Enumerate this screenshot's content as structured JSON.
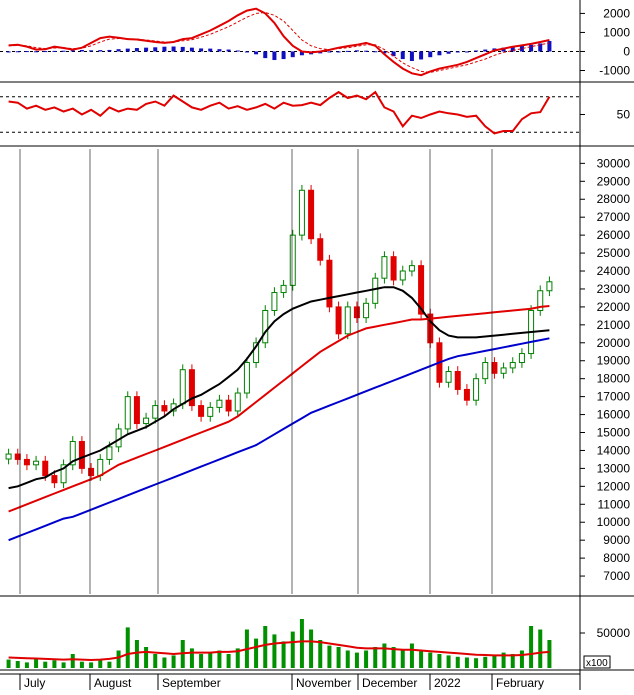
{
  "chart_data": [
    {
      "type": "line",
      "panel": "macd",
      "ylim": [
        -1500,
        2600
      ],
      "y_ticks": [
        "2000",
        "1000",
        "0",
        "-1000"
      ],
      "y_tick_values": [
        2000,
        1000,
        0,
        -1000
      ],
      "reference_lines": [
        0
      ],
      "histogram": [
        0,
        10,
        20,
        10,
        20,
        30,
        40,
        60,
        80,
        60,
        70,
        80,
        120,
        150,
        180,
        200,
        220,
        250,
        260,
        240,
        200,
        160,
        150,
        120,
        100,
        50,
        -20,
        -150,
        -350,
        -450,
        -400,
        -300,
        -200,
        -150,
        -100,
        -50,
        0,
        30,
        60,
        40,
        10,
        -100,
        -250,
        -400,
        -500,
        -420,
        -300,
        -200,
        -120,
        -50,
        0,
        50,
        100,
        160,
        200,
        250,
        300,
        350,
        420,
        550
      ],
      "series": [
        {
          "values": [
            320,
            350,
            250,
            100,
            120,
            250,
            180,
            100,
            200,
            450,
            700,
            780,
            720,
            650,
            630,
            560,
            500,
            450,
            500,
            650,
            700,
            900,
            1100,
            1350,
            1600,
            1900,
            2150,
            2250,
            2000,
            1500,
            800,
            300,
            0,
            -50,
            0,
            80,
            200,
            280,
            350,
            450,
            300,
            -150,
            -550,
            -900,
            -1150,
            -1250,
            -1050,
            -900,
            -800,
            -700,
            -550,
            -350,
            -150,
            50,
            150,
            250,
            320,
            400,
            500,
            600
          ],
          "color": "#e00000"
        },
        {
          "values": [
            300,
            320,
            300,
            200,
            150,
            180,
            190,
            150,
            170,
            300,
            500,
            650,
            680,
            670,
            650,
            600,
            550,
            500,
            500,
            560,
            620,
            750,
            900,
            1100,
            1300,
            1550,
            1800,
            2000,
            2050,
            1900,
            1600,
            1100,
            600,
            300,
            150,
            100,
            150,
            200,
            270,
            350,
            350,
            100,
            -250,
            -600,
            -850,
            -1050,
            -1100,
            -1000,
            -900,
            -800,
            -700,
            -550,
            -400,
            -200,
            -50,
            50,
            150,
            250,
            350,
            450
          ],
          "color": "#e00000",
          "dashed": true
        }
      ]
    },
    {
      "type": "line",
      "panel": "rsi",
      "ylim": [
        0,
        100
      ],
      "y_ticks": [
        "50"
      ],
      "y_tick_values": [
        50
      ],
      "reference_lines": [
        20,
        80
      ],
      "series": [
        {
          "values": [
            72,
            70,
            60,
            65,
            58,
            62,
            55,
            60,
            50,
            58,
            48,
            62,
            55,
            60,
            58,
            68,
            72,
            65,
            82,
            72,
            62,
            58,
            65,
            70,
            60,
            64,
            58,
            62,
            68,
            60,
            70,
            65,
            66,
            70,
            66,
            78,
            88,
            78,
            82,
            76,
            88,
            62,
            55,
            30,
            48,
            44,
            50,
            55,
            52,
            50,
            46,
            48,
            30,
            18,
            22,
            22,
            42,
            52,
            54,
            80
          ],
          "color": "#e00000"
        }
      ]
    },
    {
      "type": "candlestick",
      "panel": "price",
      "ylim": [
        6000,
        30800
      ],
      "y_ticks": [
        "30000",
        "29000",
        "28000",
        "27000",
        "26000",
        "25000",
        "24000",
        "23000",
        "22000",
        "21000",
        "20000",
        "19000",
        "18000",
        "17000",
        "16000",
        "15000",
        "14000",
        "13000",
        "12000",
        "11000",
        "10000",
        "9000",
        "8000",
        "7000"
      ],
      "y_tick_values": [
        30000,
        29000,
        28000,
        27000,
        26000,
        25000,
        24000,
        23000,
        22000,
        21000,
        20000,
        19000,
        18000,
        17000,
        16000,
        15000,
        14000,
        13000,
        12000,
        11000,
        10000,
        9000,
        8000,
        7000
      ],
      "x_ticks": [
        "July",
        "August",
        "September",
        "November",
        "December",
        "2022",
        "February"
      ],
      "close": [
        13800,
        13500,
        13200,
        13400,
        12600,
        12200,
        13200,
        14500,
        13000,
        12600,
        13500,
        14200,
        15200,
        17000,
        15500,
        15800,
        16500,
        16200,
        16600,
        18500,
        16500,
        15900,
        16400,
        16800,
        16200,
        17200,
        18900,
        20000,
        21800,
        22800,
        23200,
        26000,
        28500,
        25800,
        24600,
        22000,
        20500,
        22000,
        21400,
        22200,
        23600,
        24800,
        23500,
        24000,
        24300,
        21600,
        20000,
        17800,
        18400,
        17400,
        16800,
        18000,
        18900,
        18300,
        18600,
        18900,
        19400,
        21800,
        22900,
        23400
      ],
      "series": [
        {
          "name": "",
          "values": [
            11900,
            12000,
            12200,
            12400,
            12500,
            12800,
            13000,
            13400,
            13600,
            13800,
            14000,
            14300,
            14600,
            14900,
            15100,
            15300,
            15600,
            15900,
            16300,
            16600,
            16900,
            17100,
            17400,
            17700,
            18100,
            18500,
            19100,
            19800,
            20600,
            21200,
            21600,
            21900,
            22100,
            22300,
            22400,
            22500,
            22600,
            22700,
            22800,
            22900,
            23000,
            23100,
            23100,
            22900,
            22500,
            21900,
            21200,
            20700,
            20400,
            20300,
            20300,
            20300,
            20350,
            20400,
            20450,
            20500,
            20550,
            20600,
            20650,
            20700
          ],
          "color": "#000000"
        },
        {
          "name": "",
          "values": [
            10600,
            10800,
            11000,
            11200,
            11400,
            11600,
            11800,
            12000,
            12200,
            12400,
            12600,
            12900,
            13200,
            13400,
            13600,
            13800,
            14000,
            14200,
            14400,
            14600,
            14800,
            15000,
            15200,
            15400,
            15600,
            15900,
            16300,
            16700,
            17100,
            17500,
            17900,
            18300,
            18700,
            19100,
            19500,
            19800,
            20100,
            20400,
            20600,
            20800,
            20900,
            21000,
            21100,
            21200,
            21300,
            21300,
            21350,
            21400,
            21450,
            21500,
            21550,
            21600,
            21650,
            21700,
            21750,
            21800,
            21850,
            21900,
            22000,
            22050
          ],
          "color": "#e00000"
        },
        {
          "name": "",
          "values": [
            9000,
            9200,
            9400,
            9600,
            9800,
            10000,
            10200,
            10300,
            10500,
            10700,
            10900,
            11100,
            11300,
            11500,
            11700,
            11900,
            12100,
            12300,
            12500,
            12700,
            12900,
            13100,
            13300,
            13500,
            13700,
            13900,
            14100,
            14300,
            14600,
            14900,
            15200,
            15500,
            15800,
            16100,
            16300,
            16500,
            16700,
            16900,
            17100,
            17300,
            17500,
            17700,
            17900,
            18100,
            18300,
            18500,
            18700,
            18900,
            19100,
            19250,
            19350,
            19450,
            19550,
            19650,
            19750,
            19850,
            19950,
            20050,
            20150,
            20250
          ],
          "color": "#0000cc"
        }
      ]
    },
    {
      "type": "bar",
      "panel": "volume",
      "ylim": [
        0,
        100000
      ],
      "y_ticks": [
        "50000"
      ],
      "y_tick_values": [
        50000
      ],
      "unit_label": "x100",
      "values": [
        12000,
        10000,
        8000,
        14000,
        9000,
        11000,
        8000,
        20000,
        9000,
        8000,
        12000,
        9000,
        25000,
        58000,
        40000,
        30000,
        20000,
        15000,
        18000,
        40000,
        28000,
        20000,
        22000,
        25000,
        20000,
        28000,
        55000,
        42000,
        60000,
        48000,
        38000,
        52000,
        70000,
        55000,
        40000,
        32000,
        30000,
        25000,
        22000,
        25000,
        30000,
        35000,
        30000,
        26000,
        35000,
        25000,
        22000,
        20000,
        18000,
        16000,
        15000,
        14000,
        16000,
        18000,
        22000,
        20000,
        25000,
        60000,
        55000,
        40000
      ],
      "series": [
        {
          "name": "",
          "values": [
            15000,
            14500,
            14000,
            13500,
            13000,
            12500,
            12000,
            12500,
            12000,
            11500,
            12000,
            13000,
            15000,
            20000,
            22000,
            23000,
            22000,
            21000,
            20000,
            21000,
            22000,
            22000,
            22000,
            23000,
            23000,
            24000,
            27000,
            30000,
            33000,
            35000,
            36000,
            37000,
            38000,
            38000,
            37000,
            35000,
            33000,
            31000,
            29000,
            28000,
            28000,
            28000,
            27000,
            26000,
            26000,
            25000,
            24000,
            23000,
            22000,
            21000,
            20000,
            19000,
            18500,
            18000,
            18000,
            18000,
            18500,
            20000,
            22000,
            23000
          ],
          "color": "#e00000"
        }
      ]
    }
  ]
}
